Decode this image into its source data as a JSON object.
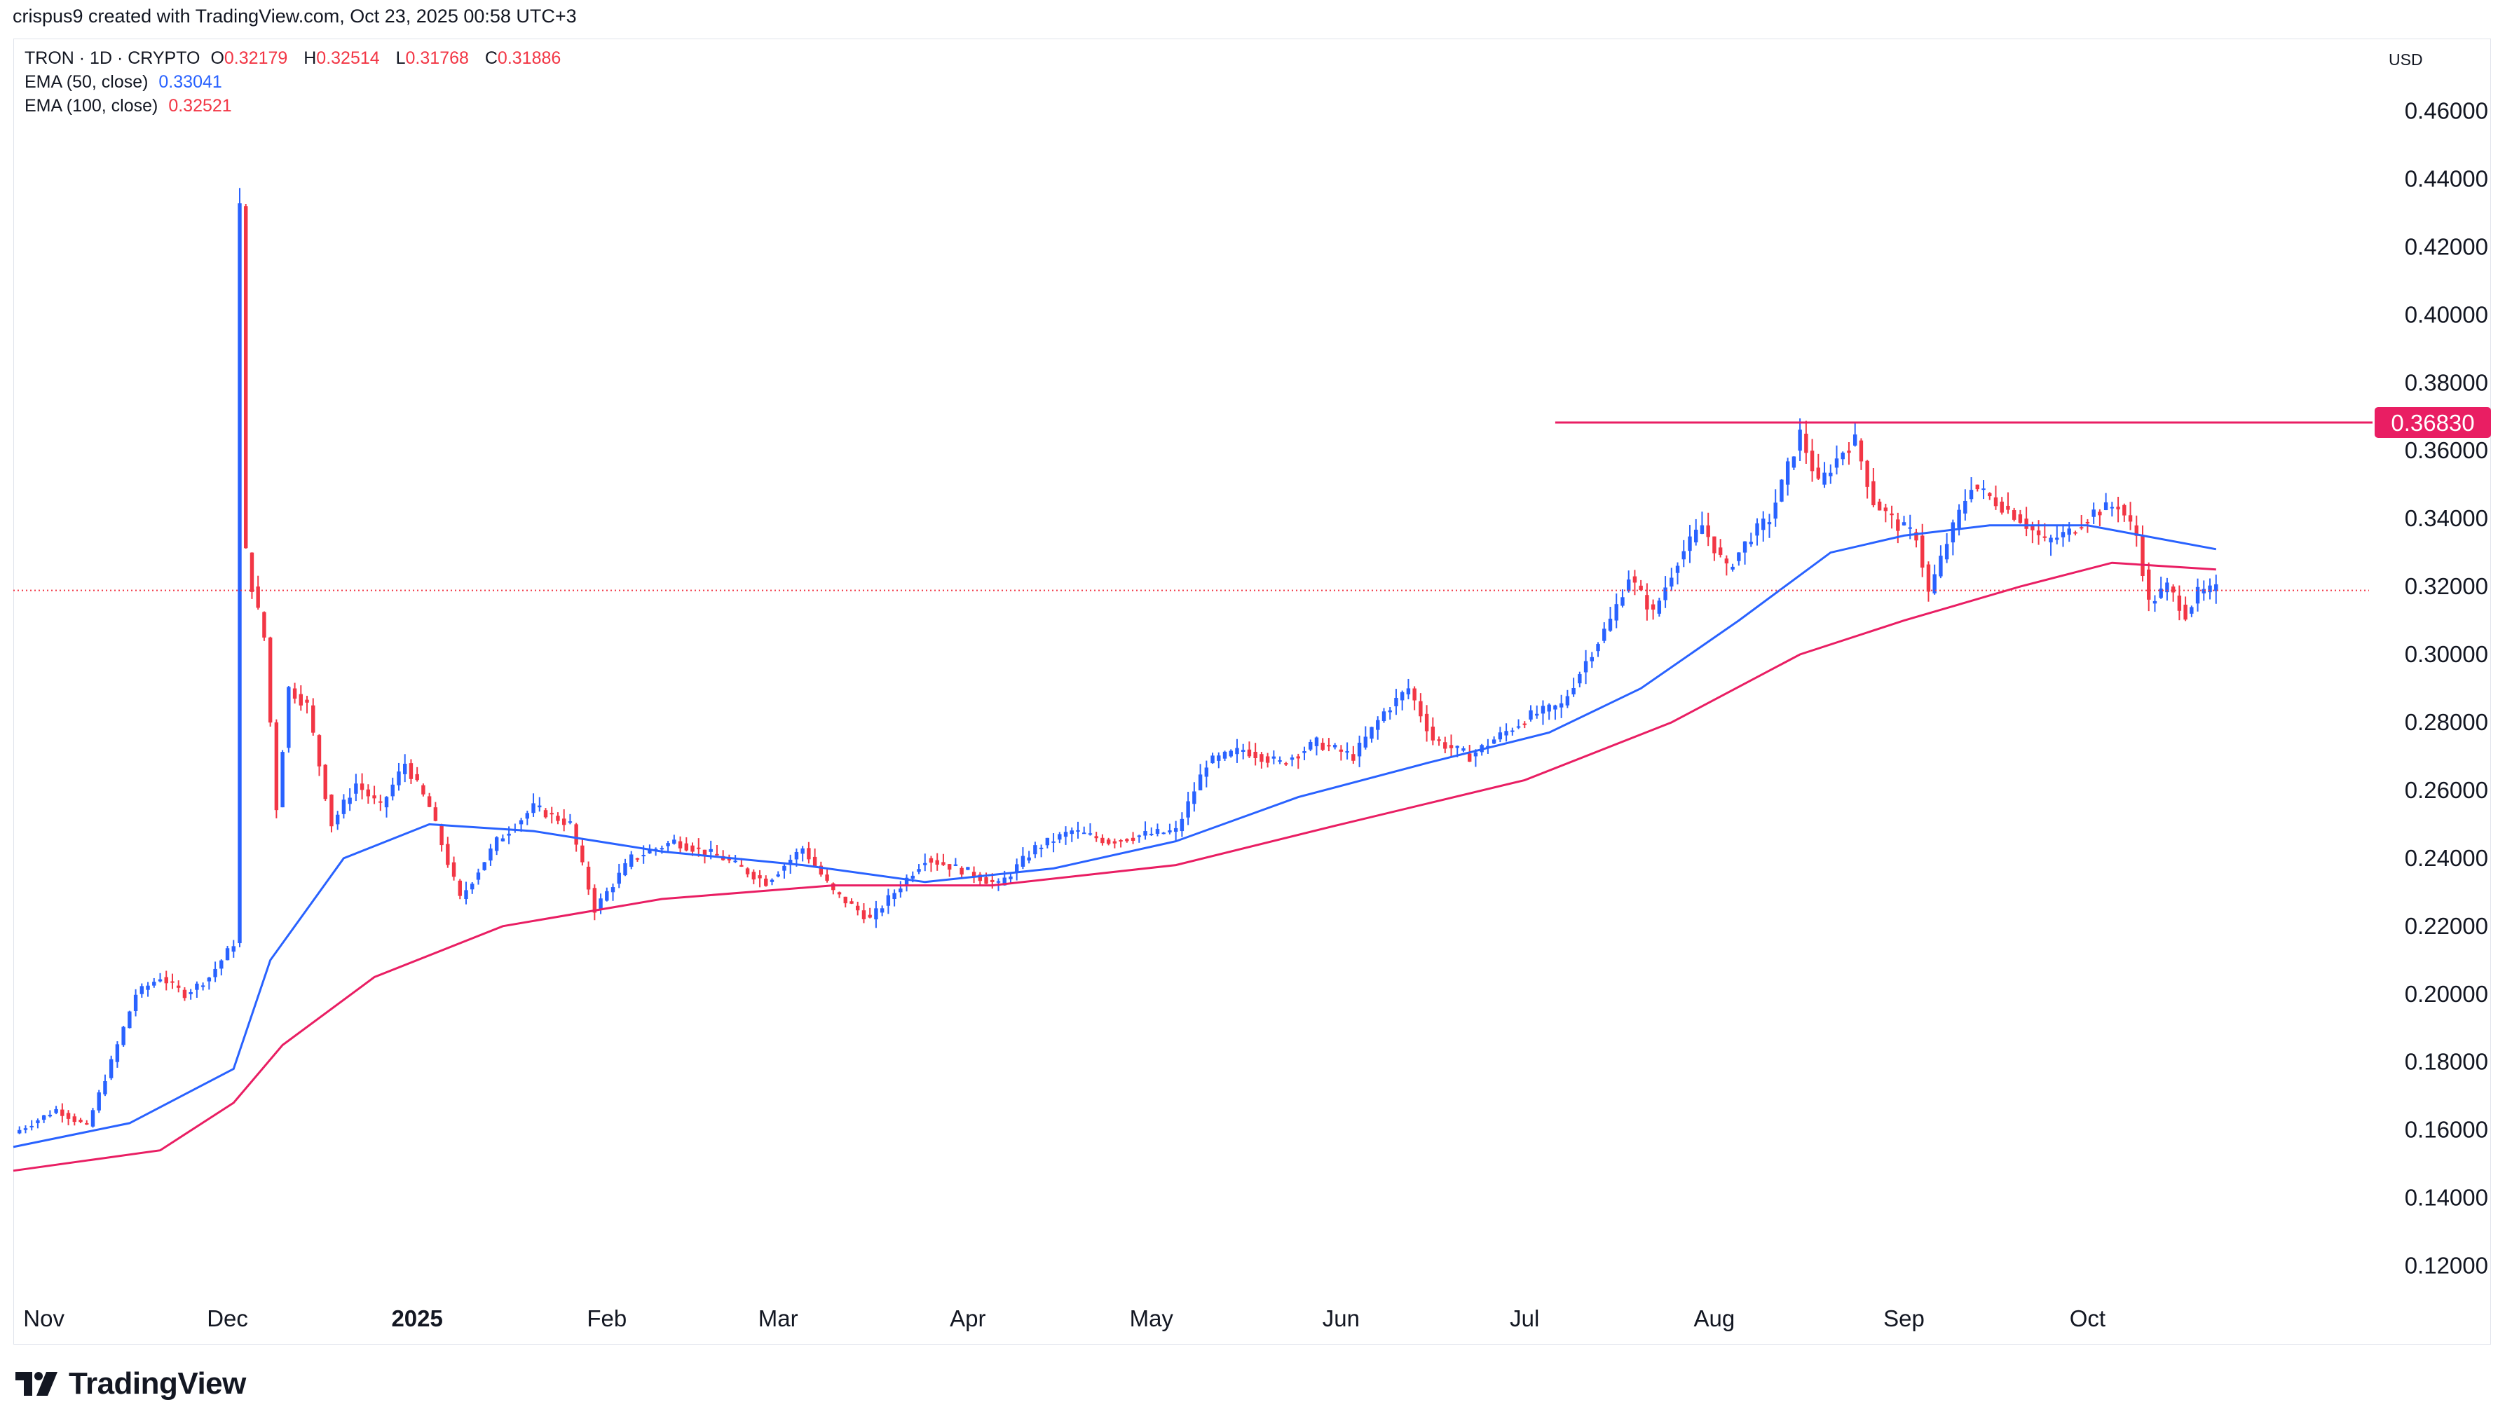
{
  "header": {
    "text": "crispus9 created with TradingView.com, Oct 23, 2025 00:58 UTC+3"
  },
  "legend": {
    "symbol": "TRON · 1D · CRYPTO",
    "ohlc": [
      {
        "label": "O",
        "value": "0.32179"
      },
      {
        "label": "H",
        "value": "0.32514"
      },
      {
        "label": "L",
        "value": "0.31768"
      },
      {
        "label": "C",
        "value": "0.31886"
      }
    ],
    "ema50": {
      "label": "EMA (50, close)",
      "value": "0.33041"
    },
    "ema100": {
      "label": "EMA (100, close)",
      "value": "0.32521"
    }
  },
  "currency": "USD",
  "brand": "TradingView",
  "colors": {
    "up": "#2962ff",
    "down": "#f23645",
    "ema50": "#2962ff",
    "ema100": "#e91e63",
    "resistance": "#e91e63",
    "grid": "#e0e3eb"
  },
  "chart_data": {
    "type": "candlestick",
    "symbol": "TRON",
    "interval": "1D",
    "ylim": [
      0.11,
      0.47
    ],
    "y_ticks": [
      "0.12000",
      "0.14000",
      "0.16000",
      "0.18000",
      "0.20000",
      "0.22000",
      "0.24000",
      "0.26000",
      "0.28000",
      "0.30000",
      "0.32000",
      "0.34000",
      "0.36000",
      "0.38000",
      "0.40000",
      "0.42000",
      "0.44000",
      "0.46000"
    ],
    "x_ticks": [
      {
        "label": "Nov",
        "date": "2024-11-01"
      },
      {
        "label": "Dec",
        "date": "2024-12-01"
      },
      {
        "label": "2025",
        "date": "2025-01-01",
        "bold": true
      },
      {
        "label": "Feb",
        "date": "2025-02-01"
      },
      {
        "label": "Mar",
        "date": "2025-03-01"
      },
      {
        "label": "Apr",
        "date": "2025-04-01"
      },
      {
        "label": "May",
        "date": "2025-05-01"
      },
      {
        "label": "Jun",
        "date": "2025-06-01"
      },
      {
        "label": "Jul",
        "date": "2025-07-01"
      },
      {
        "label": "Aug",
        "date": "2025-08-01"
      },
      {
        "label": "Sep",
        "date": "2025-09-01"
      },
      {
        "label": "Oct",
        "date": "2025-10-01"
      }
    ],
    "close_series": [
      [
        "2024-10-27",
        0.159
      ],
      [
        "2024-11-03",
        0.166
      ],
      [
        "2024-11-08",
        0.161
      ],
      [
        "2024-11-12",
        0.18
      ],
      [
        "2024-11-16",
        0.2
      ],
      [
        "2024-11-20",
        0.205
      ],
      [
        "2024-11-24",
        0.2
      ],
      [
        "2024-11-28",
        0.205
      ],
      [
        "2024-12-02",
        0.215
      ],
      [
        "2024-12-03",
        0.432
      ],
      [
        "2024-12-04",
        0.33
      ],
      [
        "2024-12-05",
        0.32
      ],
      [
        "2024-12-07",
        0.305
      ],
      [
        "2024-12-09",
        0.255
      ],
      [
        "2024-12-11",
        0.29
      ],
      [
        "2024-12-14",
        0.285
      ],
      [
        "2024-12-18",
        0.25
      ],
      [
        "2024-12-22",
        0.262
      ],
      [
        "2024-12-26",
        0.255
      ],
      [
        "2024-12-30",
        0.268
      ],
      [
        "2025-01-03",
        0.255
      ],
      [
        "2025-01-08",
        0.228
      ],
      [
        "2025-01-14",
        0.245
      ],
      [
        "2025-01-20",
        0.255
      ],
      [
        "2025-01-26",
        0.25
      ],
      [
        "2025-01-30",
        0.225
      ],
      [
        "2025-02-05",
        0.24
      ],
      [
        "2025-02-12",
        0.245
      ],
      [
        "2025-02-20",
        0.24
      ],
      [
        "2025-02-27",
        0.233
      ],
      [
        "2025-03-05",
        0.243
      ],
      [
        "2025-03-10",
        0.23
      ],
      [
        "2025-03-16",
        0.222
      ],
      [
        "2025-03-20",
        0.23
      ],
      [
        "2025-03-25",
        0.24
      ],
      [
        "2025-04-01",
        0.236
      ],
      [
        "2025-04-06",
        0.232
      ],
      [
        "2025-04-12",
        0.243
      ],
      [
        "2025-04-18",
        0.248
      ],
      [
        "2025-04-24",
        0.245
      ],
      [
        "2025-04-30",
        0.247
      ],
      [
        "2025-05-05",
        0.248
      ],
      [
        "2025-05-10",
        0.268
      ],
      [
        "2025-05-16",
        0.272
      ],
      [
        "2025-05-22",
        0.268
      ],
      [
        "2025-05-28",
        0.274
      ],
      [
        "2025-06-03",
        0.27
      ],
      [
        "2025-06-08",
        0.283
      ],
      [
        "2025-06-12",
        0.29
      ],
      [
        "2025-06-16",
        0.275
      ],
      [
        "2025-06-22",
        0.27
      ],
      [
        "2025-06-26",
        0.275
      ],
      [
        "2025-07-02",
        0.282
      ],
      [
        "2025-07-07",
        0.285
      ],
      [
        "2025-07-11",
        0.298
      ],
      [
        "2025-07-15",
        0.31
      ],
      [
        "2025-07-18",
        0.323
      ],
      [
        "2025-07-22",
        0.312
      ],
      [
        "2025-07-26",
        0.328
      ],
      [
        "2025-07-30",
        0.338
      ],
      [
        "2025-08-03",
        0.325
      ],
      [
        "2025-08-07",
        0.335
      ],
      [
        "2025-08-10",
        0.34
      ],
      [
        "2025-08-13",
        0.355
      ],
      [
        "2025-08-15",
        0.365
      ],
      [
        "2025-08-18",
        0.35
      ],
      [
        "2025-08-22",
        0.36
      ],
      [
        "2025-08-24",
        0.363
      ],
      [
        "2025-08-27",
        0.345
      ],
      [
        "2025-08-31",
        0.338
      ],
      [
        "2025-09-03",
        0.335
      ],
      [
        "2025-09-05",
        0.318
      ],
      [
        "2025-09-08",
        0.333
      ],
      [
        "2025-09-12",
        0.35
      ],
      [
        "2025-09-16",
        0.345
      ],
      [
        "2025-09-20",
        0.34
      ],
      [
        "2025-09-24",
        0.333
      ],
      [
        "2025-09-28",
        0.336
      ],
      [
        "2025-10-02",
        0.342
      ],
      [
        "2025-10-06",
        0.344
      ],
      [
        "2025-10-09",
        0.335
      ],
      [
        "2025-10-11",
        0.315
      ],
      [
        "2025-10-14",
        0.32
      ],
      [
        "2025-10-17",
        0.312
      ],
      [
        "2025-10-19",
        0.318
      ],
      [
        "2025-10-22",
        0.319
      ]
    ],
    "ema50_series": [
      [
        "2024-10-27",
        0.155
      ],
      [
        "2024-11-15",
        0.162
      ],
      [
        "2024-12-02",
        0.178
      ],
      [
        "2024-12-08",
        0.21
      ],
      [
        "2024-12-20",
        0.24
      ],
      [
        "2025-01-03",
        0.25
      ],
      [
        "2025-01-20",
        0.248
      ],
      [
        "2025-02-10",
        0.242
      ],
      [
        "2025-03-05",
        0.238
      ],
      [
        "2025-03-25",
        0.233
      ],
      [
        "2025-04-15",
        0.237
      ],
      [
        "2025-05-05",
        0.245
      ],
      [
        "2025-05-25",
        0.258
      ],
      [
        "2025-06-15",
        0.268
      ],
      [
        "2025-07-05",
        0.277
      ],
      [
        "2025-07-20",
        0.29
      ],
      [
        "2025-08-05",
        0.31
      ],
      [
        "2025-08-20",
        0.33
      ],
      [
        "2025-09-01",
        0.335
      ],
      [
        "2025-09-15",
        0.338
      ],
      [
        "2025-10-01",
        0.338
      ],
      [
        "2025-10-22",
        0.331
      ]
    ],
    "ema100_series": [
      [
        "2024-10-27",
        0.148
      ],
      [
        "2024-11-20",
        0.154
      ],
      [
        "2024-12-02",
        0.168
      ],
      [
        "2024-12-10",
        0.185
      ],
      [
        "2024-12-25",
        0.205
      ],
      [
        "2025-01-15",
        0.22
      ],
      [
        "2025-02-10",
        0.228
      ],
      [
        "2025-03-10",
        0.232
      ],
      [
        "2025-04-05",
        0.232
      ],
      [
        "2025-05-05",
        0.238
      ],
      [
        "2025-06-01",
        0.25
      ],
      [
        "2025-07-01",
        0.263
      ],
      [
        "2025-07-25",
        0.28
      ],
      [
        "2025-08-15",
        0.3
      ],
      [
        "2025-09-01",
        0.31
      ],
      [
        "2025-09-20",
        0.32
      ],
      [
        "2025-10-05",
        0.327
      ],
      [
        "2025-10-22",
        0.325
      ]
    ],
    "resistance": {
      "value": 0.3683,
      "label": "0.36830",
      "from": "2025-07-06"
    },
    "last_price": 0.31886
  }
}
